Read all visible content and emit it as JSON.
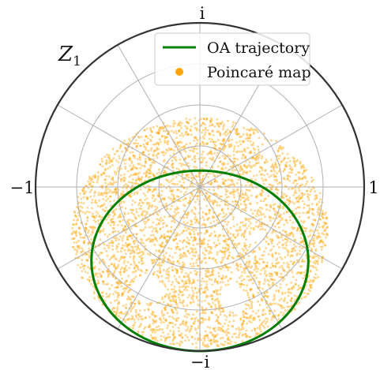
{
  "chart_data": {
    "type": "scatter",
    "title": "",
    "subtitle": "",
    "axis_label": "Z",
    "axis_label_subscript": "1",
    "rlim": [
      0,
      1
    ],
    "grid": true,
    "rings": [
      0.25,
      0.5,
      0.75
    ],
    "spokes_deg": [
      0,
      30,
      60,
      90,
      120,
      150,
      180,
      210,
      240,
      270,
      300,
      330
    ],
    "tick_labels": {
      "right": "1",
      "left": "−1",
      "top": "i",
      "bottom": "−i"
    },
    "legend_position": "top-right",
    "series": [
      {
        "name": "OA trajectory",
        "kind": "line",
        "color": "#008000",
        "shape": "ellipse",
        "center": [
          0.0,
          -0.45
        ],
        "radii": [
          0.66,
          0.55
        ]
      },
      {
        "name": "Poincaré map",
        "kind": "scatter",
        "color": "#FFA500",
        "region_center": [
          0.0,
          -0.28
        ],
        "region_radii": [
          0.78,
          0.7
        ],
        "holes": [
          {
            "center": [
              -0.32,
              -0.62
            ],
            "radius": 0.09
          },
          {
            "center": [
              0.2,
              -0.68
            ],
            "radius": 0.08
          },
          {
            "center": [
              -0.08,
              -0.45
            ],
            "radius": 0.025
          },
          {
            "center": [
              0.35,
              -0.3
            ],
            "radius": 0.04
          },
          {
            "center": [
              0.42,
              0.22
            ],
            "radius": 0.05
          }
        ]
      }
    ]
  }
}
